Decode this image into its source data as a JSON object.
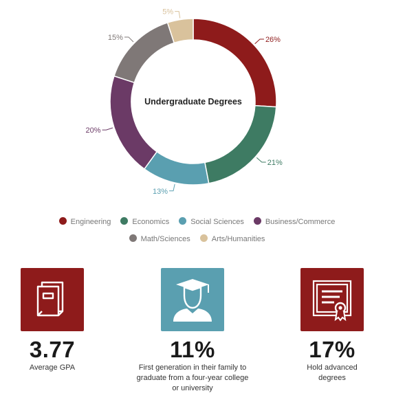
{
  "chart_data": {
    "type": "pie",
    "title": "Undergraduate Degrees",
    "categories": [
      "Engineering",
      "Economics",
      "Social Sciences",
      "Business/Commerce",
      "Math/Sciences",
      "Arts/Humanities"
    ],
    "values": [
      26,
      21,
      13,
      20,
      15,
      5
    ],
    "value_labels": [
      "26%",
      "21%",
      "13%",
      "20%",
      "15%",
      "5%"
    ],
    "colors": [
      "#8e1b1b",
      "#3e7b63",
      "#5a9fb0",
      "#6b3a66",
      "#7f7877",
      "#d9c29c"
    ],
    "legend_position": "bottom"
  },
  "stats": [
    {
      "value": "3.77",
      "label": "Average GPA",
      "icon": "books-icon",
      "color": "#8e1b1b"
    },
    {
      "value": "11%",
      "label": "First generation in their family to graduate from a four-year college or university",
      "icon": "graduate-icon",
      "color": "#5a9fb0"
    },
    {
      "value": "17%",
      "label": "Hold advanced degrees",
      "icon": "certificate-icon",
      "color": "#8e1b1b"
    }
  ]
}
